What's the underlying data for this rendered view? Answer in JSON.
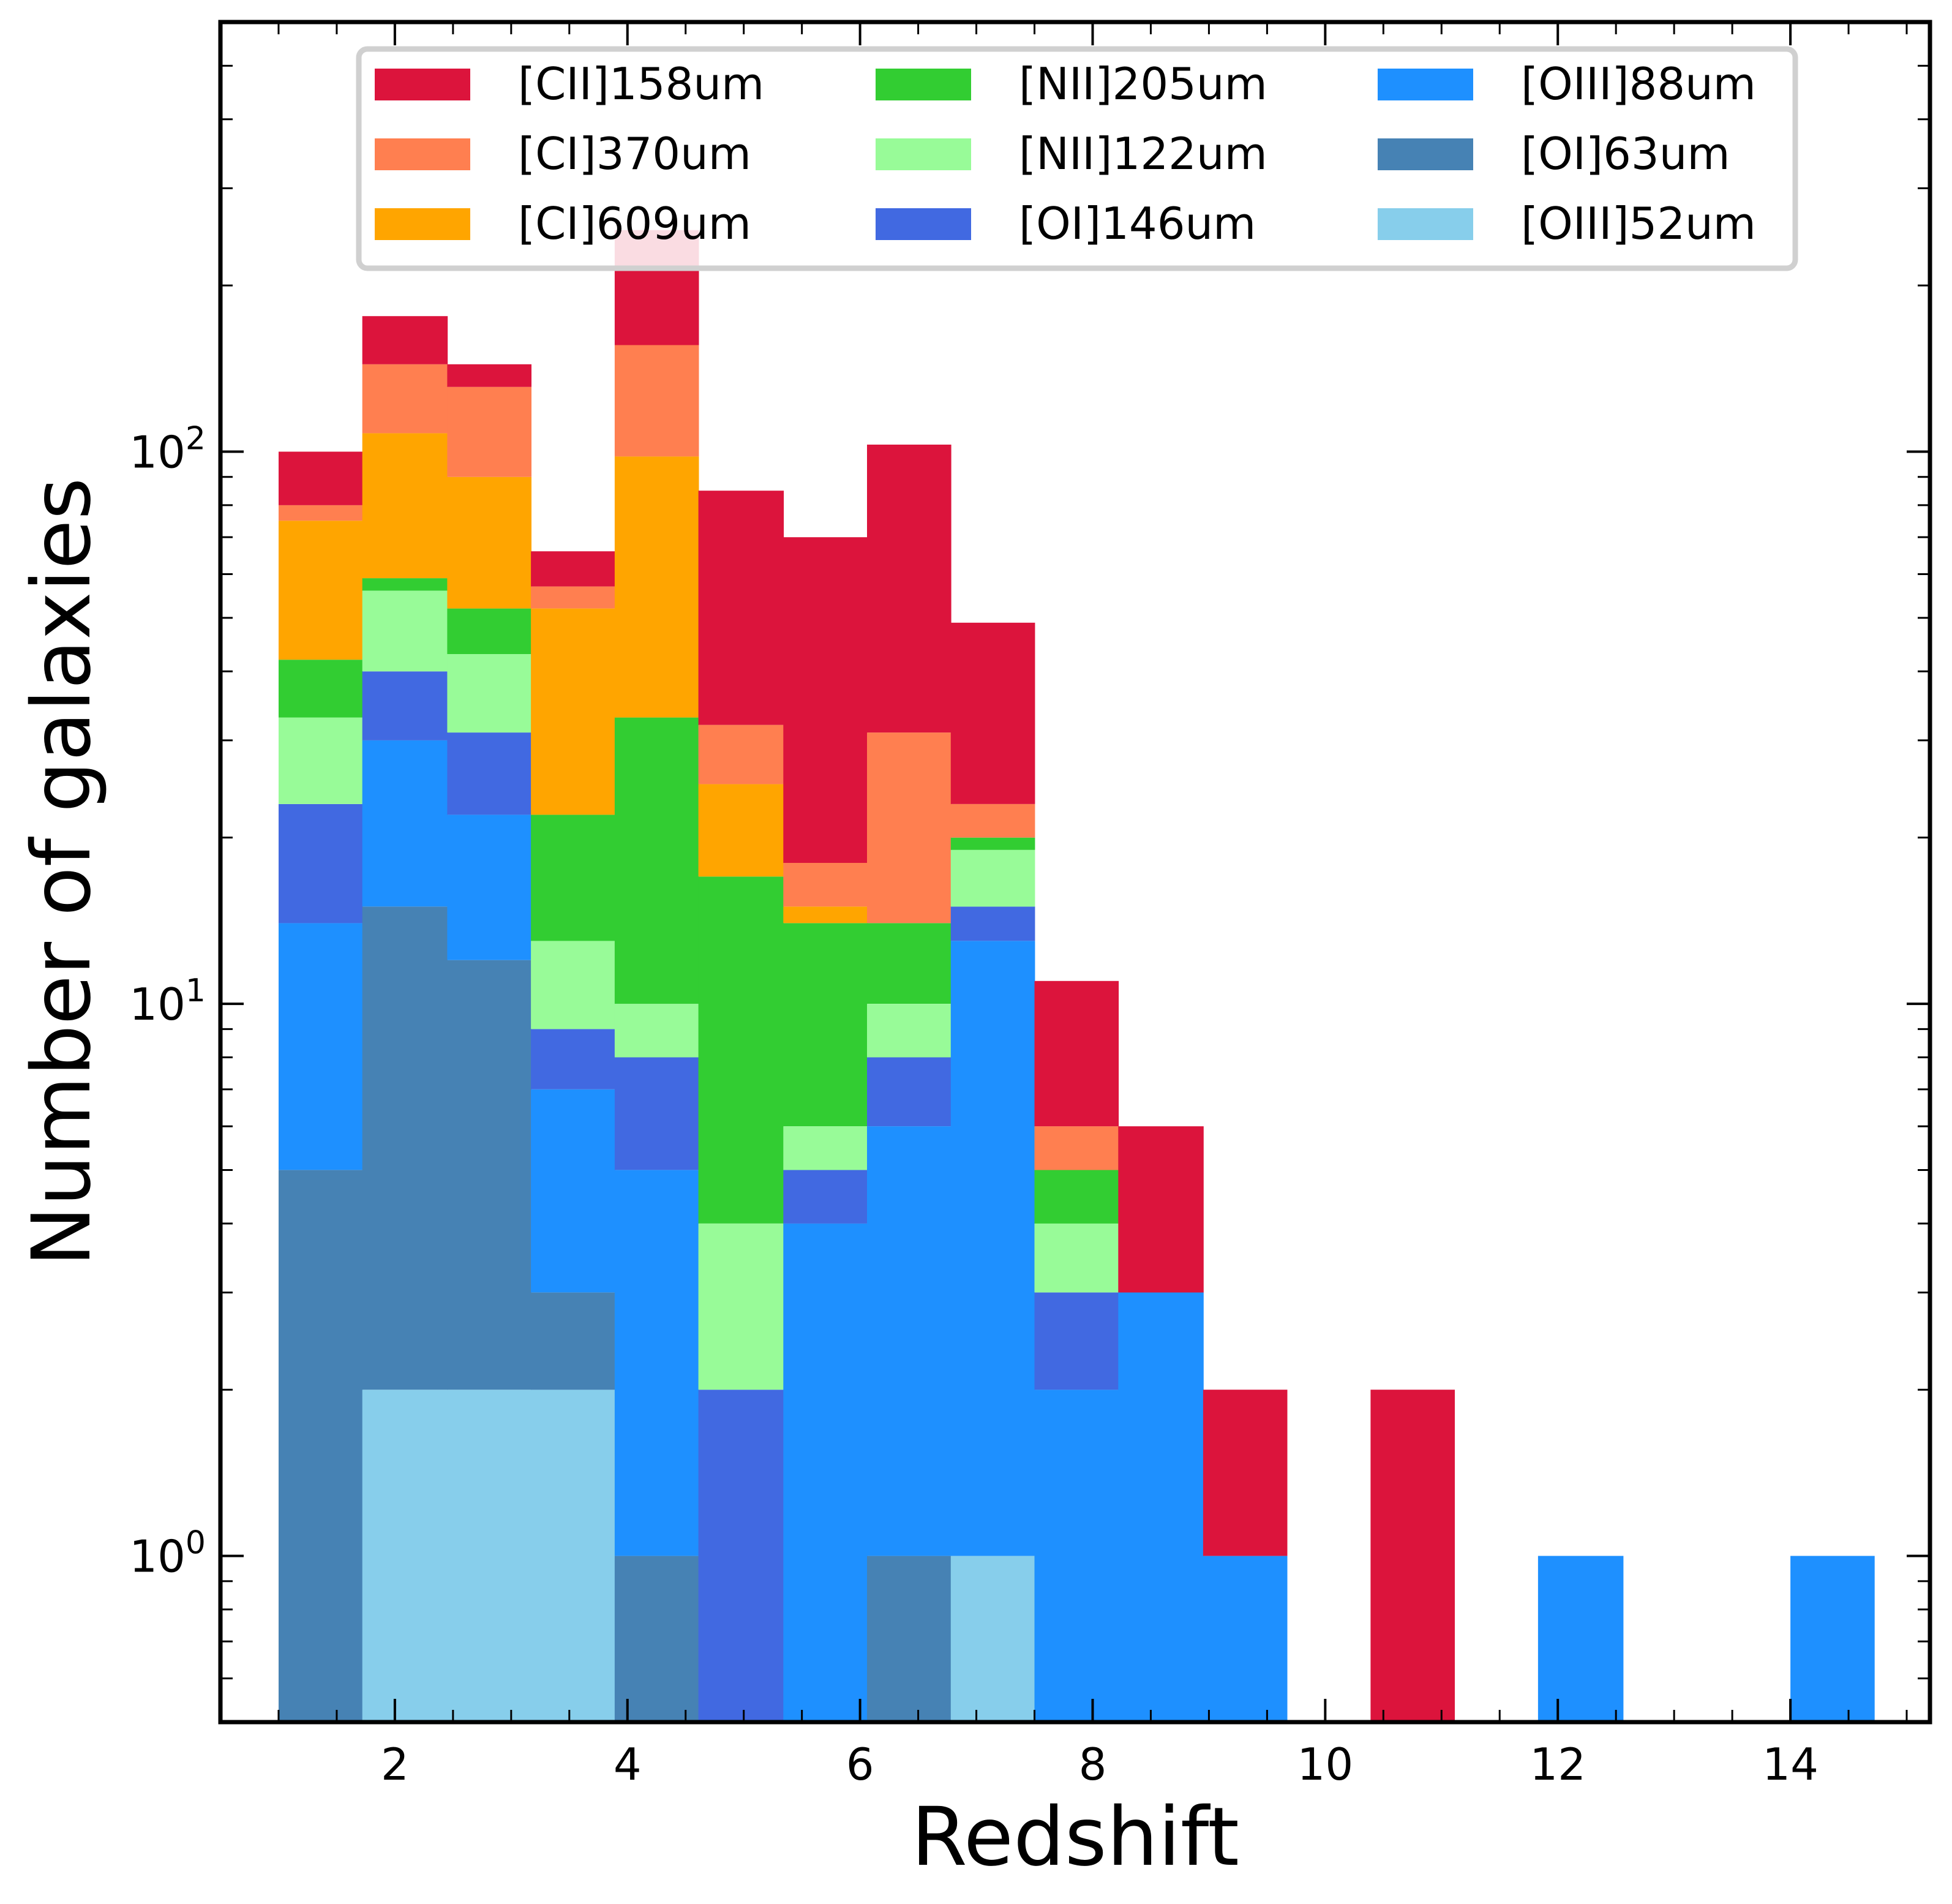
{
  "chart_data": {
    "type": "bar",
    "subtype": "stacked-histogram",
    "title": "",
    "xlabel": "Redshift",
    "ylabel": "Number of galaxies",
    "yscale": "log",
    "xlim": [
      0.5,
      15.2
    ],
    "ylim": [
      0.5,
      600
    ],
    "legend_position": "top",
    "x_ticks": [
      {
        "value": 2,
        "label": "2"
      },
      {
        "value": 4,
        "label": "4"
      },
      {
        "value": 6,
        "label": "6"
      },
      {
        "value": 8,
        "label": "8"
      },
      {
        "value": 10,
        "label": "10"
      },
      {
        "value": 12,
        "label": "12"
      },
      {
        "value": 14,
        "label": "14"
      }
    ],
    "y_ticks": [
      {
        "value": 1,
        "base": "10",
        "exp": "0"
      },
      {
        "value": 10,
        "base": "10",
        "exp": "1"
      },
      {
        "value": 100,
        "base": "10",
        "exp": "2"
      }
    ],
    "bin_edges": [
      1.0,
      1.72,
      2.45,
      3.17,
      3.89,
      4.61,
      5.34,
      6.06,
      6.78,
      7.5,
      8.22,
      8.95,
      9.67,
      10.39,
      11.11,
      11.83,
      12.56,
      13.28,
      14.0,
      14.72
    ],
    "series": [
      {
        "name": "[OIII]52um",
        "color": "#87ceeb",
        "values": [
          0,
          2,
          2,
          2,
          0,
          0,
          0,
          0,
          1,
          0,
          0,
          0,
          0,
          0,
          0,
          0,
          0,
          0,
          0
        ]
      },
      {
        "name": "[OI]63um",
        "color": "#4682b4",
        "values": [
          5,
          13,
          10,
          1,
          1,
          0,
          0,
          1,
          0,
          0,
          0,
          0,
          0,
          0,
          0,
          0,
          0,
          0,
          0
        ]
      },
      {
        "name": "[OIII]88um",
        "color": "#1e90ff",
        "values": [
          9,
          15,
          10,
          4,
          4,
          0,
          4,
          5,
          12,
          2,
          3,
          1,
          0,
          0,
          0,
          1,
          0,
          0,
          1
        ]
      },
      {
        "name": "[OI]146um",
        "color": "#4169e1",
        "values": [
          9,
          10,
          9,
          2,
          3,
          2,
          1,
          2,
          2,
          1,
          0,
          0,
          0,
          0,
          0,
          0,
          0,
          0,
          0
        ]
      },
      {
        "name": "[NII]122um",
        "color": "#98fb98",
        "values": [
          10,
          16,
          12,
          4,
          2,
          2,
          1,
          2,
          4,
          1,
          0,
          0,
          0,
          0,
          0,
          0,
          0,
          0,
          0
        ]
      },
      {
        "name": "[NII]205um",
        "color": "#32cd32",
        "values": [
          9,
          3,
          9,
          9,
          23,
          13,
          8,
          4,
          1,
          1,
          0,
          0,
          0,
          0,
          0,
          0,
          0,
          0,
          0
        ]
      },
      {
        "name": "[CI]609um",
        "color": "#ffa500",
        "values": [
          33,
          49,
          38,
          30,
          65,
          8,
          1,
          0,
          0,
          0,
          0,
          0,
          0,
          0,
          0,
          0,
          0,
          0,
          0
        ]
      },
      {
        "name": "[CI]370um",
        "color": "#ff7f50",
        "values": [
          5,
          36,
          41,
          5,
          58,
          7,
          3,
          17,
          3,
          1,
          0,
          0,
          0,
          0,
          0,
          0,
          0,
          0,
          0
        ]
      },
      {
        "name": "[CII]158um",
        "color": "#dc143c",
        "values": [
          20,
          32,
          13,
          9,
          96,
          53,
          52,
          72,
          26,
          5,
          3,
          1,
          0,
          2,
          0,
          0,
          0,
          0,
          0
        ]
      }
    ],
    "legend_entries": [
      {
        "label": "[CII]158um",
        "color": "#dc143c"
      },
      {
        "label": "[CI]370um",
        "color": "#ff7f50"
      },
      {
        "label": "[CI]609um",
        "color": "#ffa500"
      },
      {
        "label": "[NII]205um",
        "color": "#32cd32"
      },
      {
        "label": "[NII]122um",
        "color": "#98fb98"
      },
      {
        "label": "[OI]146um",
        "color": "#4169e1"
      },
      {
        "label": "[OIII]88um",
        "color": "#1e90ff"
      },
      {
        "label": "[OI]63um",
        "color": "#4682b4"
      },
      {
        "label": "[OIII]52um",
        "color": "#87ceeb"
      }
    ]
  }
}
